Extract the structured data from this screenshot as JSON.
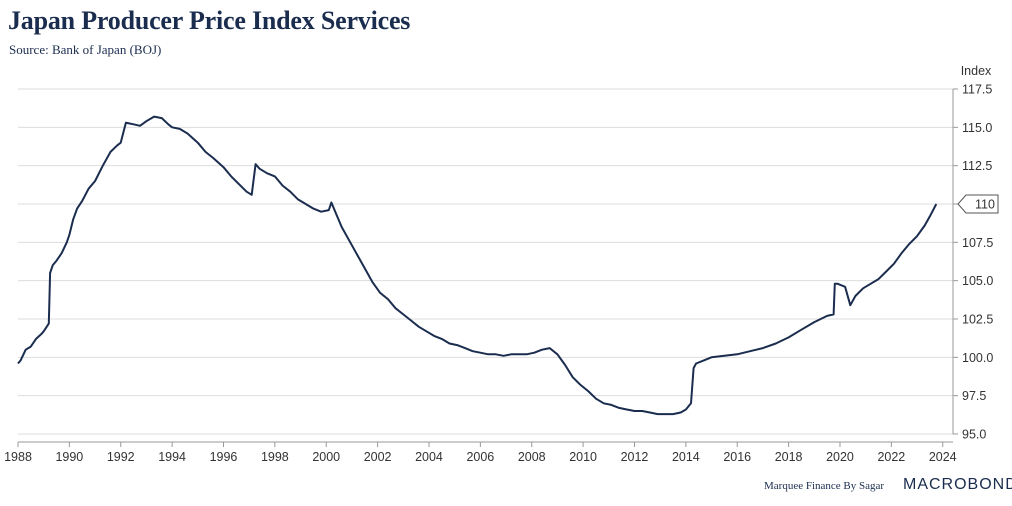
{
  "title": "Japan Producer Price Index Services",
  "subtitle": "Source: Bank of Japan (BOJ)",
  "footer": {
    "credit": "Marquee Finance By Sagar",
    "brand": "MACROBOND"
  },
  "colors": {
    "line": "#1b2d4f",
    "grid": "#dddddd",
    "text": "#1b2d4f"
  },
  "chart_data": {
    "type": "line",
    "title": "Japan Producer Price Index Services",
    "ylabel": "Index",
    "xlabel": "",
    "ylim": [
      95.0,
      117.5
    ],
    "xlim": [
      1988.0,
      2024.4
    ],
    "y_ticks": [
      "95.0",
      "97.5",
      "100.0",
      "102.5",
      "105.0",
      "107.5",
      "110",
      "112.5",
      "115.0",
      "117.5"
    ],
    "x_ticks": [
      "1988",
      "1990",
      "1992",
      "1994",
      "1996",
      "1998",
      "2000",
      "2002",
      "2004",
      "2006",
      "2008",
      "2010",
      "2012",
      "2014",
      "2016",
      "2018",
      "2020",
      "2022",
      "2024"
    ],
    "grid": true,
    "last_value_label": "110",
    "series": [
      {
        "x": [
          1988.0,
          1988.1,
          1988.3,
          1988.5,
          1988.7,
          1988.9,
          1989.0,
          1989.2,
          1989.25,
          1989.35,
          1989.5,
          1989.7,
          1989.9,
          1990.0,
          1990.15,
          1990.3,
          1990.5,
          1990.75,
          1991.0,
          1991.3,
          1991.6,
          1991.85,
          1992.0,
          1992.2,
          1992.5,
          1992.75,
          1993.0,
          1993.3,
          1993.6,
          1993.85,
          1994.0,
          1994.3,
          1994.6,
          1995.0,
          1995.3,
          1995.6,
          1996.0,
          1996.3,
          1996.6,
          1996.9,
          1997.1,
          1997.25,
          1997.4,
          1997.7,
          1998.0,
          1998.3,
          1998.6,
          1998.9,
          1999.2,
          1999.5,
          1999.8,
          2000.1,
          2000.2,
          2000.4,
          2000.6,
          2000.9,
          2001.2,
          2001.5,
          2001.8,
          2002.1,
          2002.4,
          2002.7,
          2003.0,
          2003.3,
          2003.6,
          2003.9,
          2004.2,
          2004.5,
          2004.8,
          2005.1,
          2005.4,
          2005.7,
          2006.0,
          2006.3,
          2006.6,
          2006.9,
          2007.2,
          2007.5,
          2007.8,
          2008.1,
          2008.4,
          2008.7,
          2009.0,
          2009.3,
          2009.6,
          2009.9,
          2010.2,
          2010.5,
          2010.8,
          2011.1,
          2011.4,
          2011.7,
          2012.0,
          2012.3,
          2012.6,
          2012.9,
          2013.2,
          2013.5,
          2013.8,
          2014.0,
          2014.2,
          2014.3,
          2014.4,
          2014.7,
          2015.0,
          2015.5,
          2016.0,
          2016.5,
          2017.0,
          2017.5,
          2018.0,
          2018.5,
          2019.0,
          2019.5,
          2019.75,
          2019.8,
          2019.9,
          2020.2,
          2020.4,
          2020.6,
          2020.9,
          2021.2,
          2021.5,
          2021.8,
          2022.1,
          2022.4,
          2022.7,
          2023.0,
          2023.3,
          2023.5,
          2023.75
        ],
        "y": [
          99.6,
          99.8,
          100.5,
          100.7,
          101.2,
          101.5,
          101.7,
          102.2,
          105.5,
          106.0,
          106.3,
          106.8,
          107.5,
          108.0,
          109.0,
          109.7,
          110.2,
          111.0,
          111.5,
          112.5,
          113.4,
          113.8,
          114.0,
          115.3,
          115.2,
          115.1,
          115.4,
          115.7,
          115.6,
          115.2,
          115.0,
          114.9,
          114.6,
          114.0,
          113.4,
          113.0,
          112.4,
          111.8,
          111.3,
          110.8,
          110.6,
          112.6,
          112.3,
          112.0,
          111.8,
          111.2,
          110.8,
          110.3,
          110.0,
          109.7,
          109.5,
          109.6,
          110.1,
          109.3,
          108.5,
          107.6,
          106.7,
          105.8,
          104.9,
          104.2,
          103.8,
          103.2,
          102.8,
          102.4,
          102.0,
          101.7,
          101.4,
          101.2,
          100.9,
          100.8,
          100.6,
          100.4,
          100.3,
          100.2,
          100.2,
          100.1,
          100.2,
          100.2,
          100.2,
          100.3,
          100.5,
          100.6,
          100.2,
          99.5,
          98.7,
          98.2,
          97.8,
          97.3,
          97.0,
          96.9,
          96.7,
          96.6,
          96.5,
          96.5,
          96.4,
          96.3,
          96.3,
          96.3,
          96.4,
          96.6,
          97.0,
          99.3,
          99.6,
          99.8,
          100.0,
          100.1,
          100.2,
          100.4,
          100.6,
          100.9,
          101.3,
          101.8,
          102.3,
          102.7,
          102.8,
          104.8,
          104.8,
          104.6,
          103.4,
          104.0,
          104.5,
          104.8,
          105.1,
          105.6,
          106.1,
          106.8,
          107.4,
          107.9,
          108.6,
          109.2,
          110.0
        ]
      }
    ]
  }
}
